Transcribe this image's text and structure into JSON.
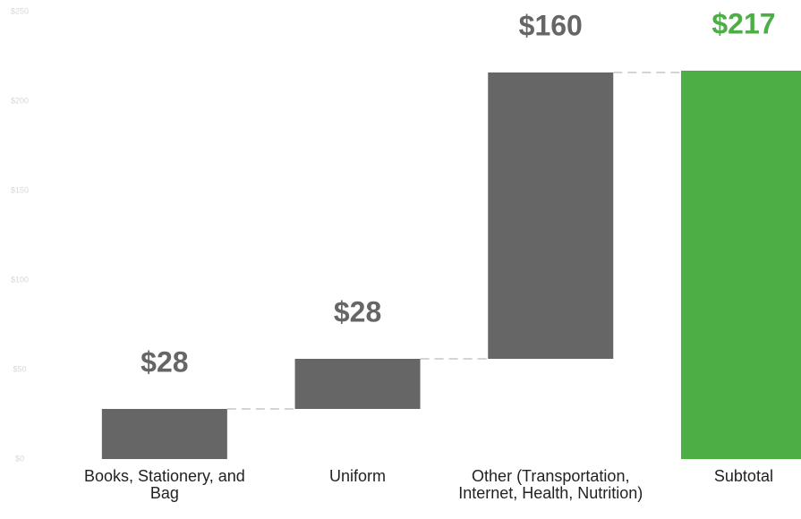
{
  "chart_data": {
    "type": "waterfall",
    "categories": [
      "Books, Stationery, and Bag",
      "Uniform",
      "Other (Transportation, Internet, Health, Nutrition)",
      "Subtotal"
    ],
    "values": [
      28,
      28,
      160,
      217
    ],
    "value_labels": [
      "$28",
      "$28",
      "$160",
      "$217"
    ],
    "totals": [
      false,
      false,
      false,
      true
    ],
    "color": "#666666",
    "total_color": "#4caf45",
    "ylim": [
      0,
      250
    ],
    "yticks": [
      {
        "value": 0,
        "label": "$0"
      },
      {
        "value": 50,
        "label": "$50"
      },
      {
        "value": 100,
        "label": "$100"
      },
      {
        "value": 150,
        "label": "$150"
      },
      {
        "value": 200,
        "label": "$200"
      },
      {
        "value": 250,
        "label": "$250"
      }
    ],
    "grid": false
  }
}
